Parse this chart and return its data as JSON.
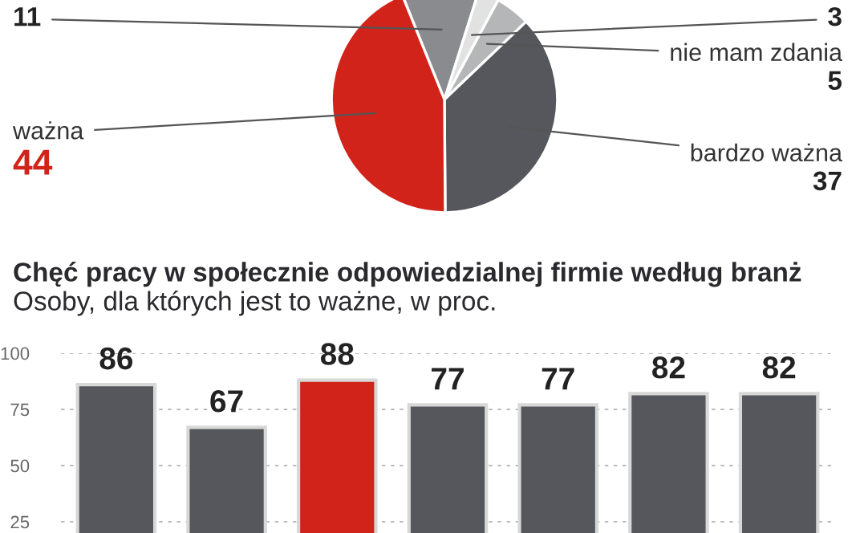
{
  "chart_data": [
    {
      "type": "pie",
      "categories": [
        null,
        null,
        "nie mam zdania",
        "bardzo ważna",
        "ważna"
      ],
      "values": [
        11,
        3,
        5,
        37,
        44
      ],
      "colors": [
        "#8a8b8f",
        "#e2e2e3",
        "#b5b6b8",
        "#56575c",
        "#d2231a"
      ],
      "data_labels": true,
      "legend": false
    },
    {
      "type": "bar",
      "title": "Chęć pracy w społecznie odpowiedzialnej firmie według branż",
      "subtitle": "Osoby, dla których jest to ważne, w proc.",
      "categories": [
        null,
        null,
        null,
        null,
        null,
        null,
        null
      ],
      "values": [
        86,
        67,
        88,
        77,
        77,
        82,
        82
      ],
      "colors": [
        "#56575c",
        "#56575c",
        "#d2231a",
        "#56575c",
        "#56575c",
        "#56575c",
        "#56575c"
      ],
      "ylim": [
        0,
        100
      ],
      "yticks": [
        25,
        50,
        75,
        100
      ],
      "grid": "y",
      "data_labels": true,
      "legend": false
    }
  ]
}
